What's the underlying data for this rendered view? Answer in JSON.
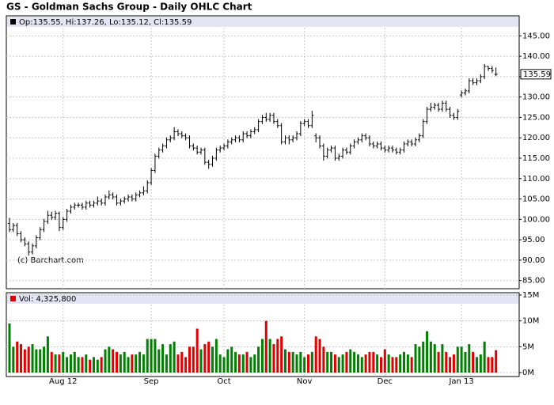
{
  "chart_data": [
    {
      "type": "ohlc",
      "title": "GS - Goldman Sachs Group - Daily OHLC Chart",
      "legend_text": "Op:135.55, Hi:137.26, Lo:135.12, Cl:135.59",
      "price_tag": "135.59",
      "watermark": "(c) Barchart.com",
      "color": "#000000",
      "grid": true,
      "categories": [
        null,
        null,
        null,
        null,
        null,
        null,
        null,
        null,
        null,
        null,
        null,
        null,
        null,
        null,
        "Aug 12",
        null,
        null,
        null,
        null,
        null,
        null,
        null,
        null,
        null,
        null,
        null,
        null,
        null,
        null,
        null,
        null,
        null,
        null,
        null,
        null,
        null,
        null,
        "Sep",
        null,
        null,
        null,
        null,
        null,
        null,
        null,
        null,
        null,
        null,
        null,
        null,
        null,
        null,
        null,
        null,
        null,
        null,
        "Oct",
        null,
        null,
        null,
        null,
        null,
        null,
        null,
        null,
        null,
        null,
        null,
        null,
        null,
        null,
        null,
        null,
        null,
        null,
        null,
        null,
        "Nov",
        null,
        null,
        null,
        null,
        null,
        null,
        null,
        null,
        null,
        null,
        null,
        null,
        null,
        null,
        null,
        null,
        null,
        null,
        null,
        null,
        "Dec",
        null,
        null,
        null,
        null,
        null,
        null,
        null,
        null,
        null,
        null,
        null,
        null,
        null,
        null,
        null,
        null,
        null,
        null,
        null,
        "Jan 13",
        null,
        null,
        null,
        null,
        null,
        null,
        null,
        null,
        null
      ],
      "open": [
        99,
        97.5,
        98.5,
        96.5,
        95,
        94,
        92,
        93.5,
        95.5,
        97.5,
        99.5,
        101,
        100.5,
        101.5,
        98,
        100,
        102,
        103,
        103.5,
        103.5,
        103,
        104,
        103.5,
        104,
        104.5,
        104,
        105.5,
        106,
        105.5,
        104,
        104.5,
        105,
        105.5,
        105,
        106,
        106.5,
        107,
        109,
        112,
        115.5,
        117,
        118,
        119.5,
        120,
        121.5,
        121,
        120.5,
        120,
        118,
        117.5,
        116.5,
        117,
        114,
        113.5,
        115,
        117,
        117.5,
        118,
        119,
        119.5,
        120,
        119.5,
        121,
        120.5,
        121.5,
        122,
        124,
        125,
        124.5,
        125.5,
        124,
        123,
        119,
        120,
        119.5,
        120,
        121,
        123.5,
        124,
        123,
        120.5,
        120,
        118,
        115.5,
        117,
        117.5,
        115,
        115.5,
        117,
        116.5,
        118,
        119,
        119.5,
        120.5,
        120,
        118.5,
        118,
        118.5,
        117.5,
        117,
        117.5,
        117,
        116.5,
        117,
        118.5,
        119,
        118.5,
        119.5,
        120.5,
        124,
        127,
        127.5,
        128,
        127,
        128.5,
        127,
        125.5,
        125,
        130.5,
        131,
        131.5,
        134,
        133.5,
        134,
        135,
        137.5,
        137,
        135.55
      ],
      "high": [
        100.4,
        99.1,
        99.1,
        97.1,
        95.6,
        94.6,
        94.1,
        96.1,
        98.1,
        100.1,
        102.1,
        101.9,
        102.1,
        101.9,
        100.6,
        102.6,
        103.6,
        104.1,
        104.1,
        104.1,
        104.6,
        104.6,
        104.6,
        105.6,
        105.1,
        106.1,
        107.1,
        106.6,
        106.1,
        105.1,
        105.6,
        106.1,
        106.1,
        106.6,
        107.1,
        108.1,
        109.6,
        112.6,
        116.1,
        117.6,
        118.6,
        120.1,
        120.6,
        122.6,
        122.1,
        121.6,
        121.1,
        120.6,
        118.6,
        118.1,
        117.6,
        117.6,
        114.6,
        115.6,
        117.6,
        118.1,
        118.6,
        119.6,
        120.1,
        120.6,
        120.6,
        121.6,
        121.6,
        122.1,
        122.6,
        124.6,
        125.6,
        126.1,
        126.1,
        126.1,
        124.6,
        123.6,
        120.6,
        120.6,
        120.6,
        121.6,
        124.1,
        124.6,
        124.6,
        126.6,
        121.1,
        120.6,
        118.6,
        117.6,
        118.1,
        118.1,
        116.1,
        117.6,
        117.6,
        118.6,
        119.6,
        120.1,
        121.1,
        121.1,
        120.6,
        119.1,
        119.1,
        119.1,
        118.1,
        118.1,
        118.1,
        117.6,
        117.6,
        119.1,
        119.6,
        119.6,
        120.1,
        121.1,
        124.6,
        127.6,
        128.6,
        128.6,
        128.6,
        129.1,
        129.1,
        127.6,
        126.1,
        127.1,
        131.6,
        132.1,
        134.6,
        134.6,
        134.6,
        135.6,
        138.1,
        137.6,
        137.6,
        137.26
      ],
      "low": [
        96.9,
        96.9,
        95.9,
        94.4,
        93.4,
        91.1,
        91.4,
        92.9,
        94.9,
        96.9,
        98.9,
        99.9,
        99.9,
        97.1,
        97.4,
        99.4,
        101.4,
        102.4,
        102.9,
        102.4,
        102.4,
        102.9,
        102.9,
        103.4,
        103.4,
        103.4,
        104.9,
        104.9,
        103.4,
        103.4,
        103.9,
        104.4,
        104.4,
        104.4,
        105.4,
        105.9,
        106.4,
        108.4,
        111.4,
        114.9,
        116.4,
        117.4,
        118.9,
        119.4,
        120.4,
        119.9,
        119.4,
        117.4,
        116.9,
        115.9,
        115.9,
        113.4,
        112.4,
        112.9,
        114.4,
        116.4,
        116.9,
        117.4,
        118.4,
        118.9,
        118.9,
        118.9,
        119.9,
        119.9,
        120.9,
        121.4,
        123.4,
        123.9,
        123.9,
        123.4,
        122.4,
        118.4,
        118.4,
        118.4,
        118.9,
        119.4,
        120.4,
        122.9,
        122.4,
        122.4,
        118.9,
        117.4,
        114.4,
        114.9,
        116.4,
        114.4,
        114.4,
        114.9,
        115.9,
        115.9,
        117.4,
        118.4,
        118.9,
        119.4,
        117.9,
        117.4,
        117.4,
        116.9,
        116.4,
        116.4,
        116.4,
        115.9,
        115.9,
        116.4,
        117.9,
        117.9,
        117.9,
        118.9,
        119.9,
        123.4,
        126.4,
        126.9,
        126.4,
        126.4,
        126.4,
        124.9,
        124.4,
        124.4,
        129.9,
        130.4,
        130.9,
        132.9,
        132.9,
        133.4,
        134.4,
        136.4,
        135.9,
        135.12
      ],
      "close": [
        97.5,
        98.5,
        96.5,
        95,
        94,
        92,
        93.5,
        95.5,
        97.5,
        99.5,
        101,
        100.5,
        101.5,
        98,
        100,
        102,
        103,
        103.5,
        103.5,
        103,
        104,
        103.5,
        104,
        104.5,
        104,
        105.5,
        106,
        105.5,
        104,
        104.5,
        105,
        105.5,
        105,
        106,
        106.5,
        107,
        109,
        112,
        115.5,
        117,
        118,
        119.5,
        120,
        121.5,
        121,
        120.5,
        120,
        118,
        117.5,
        116.5,
        117,
        114,
        113.5,
        115,
        117,
        117.5,
        118,
        119,
        119.5,
        120,
        119.5,
        121,
        120.5,
        121.5,
        122,
        124,
        125,
        124.5,
        125.5,
        124,
        123,
        119,
        120,
        119.5,
        120,
        121,
        123.5,
        124,
        123,
        125.5,
        120,
        118,
        115.5,
        117,
        117.5,
        115,
        115.5,
        117,
        116.5,
        118,
        119,
        119.5,
        120.5,
        120,
        118.5,
        118,
        118.5,
        117.5,
        117,
        117.5,
        117,
        116.5,
        117,
        118.5,
        119,
        118.5,
        119.5,
        120.5,
        124,
        127,
        127.5,
        128,
        127,
        128.5,
        127,
        125.5,
        125,
        126.5,
        131,
        131.5,
        134,
        133.5,
        134,
        135,
        137.5,
        137,
        136.5,
        135.59
      ],
      "ylim": [
        83,
        147
      ],
      "yticks": [
        {
          "value": 85,
          "label": "85.00"
        },
        {
          "value": 90,
          "label": "90.00"
        },
        {
          "value": 95,
          "label": "95.00"
        },
        {
          "value": 100,
          "label": "100.00"
        },
        {
          "value": 105,
          "label": "105.00"
        },
        {
          "value": 110,
          "label": "110.00"
        },
        {
          "value": 115,
          "label": "115.00"
        },
        {
          "value": 120,
          "label": "120.00"
        },
        {
          "value": 125,
          "label": "125.00"
        },
        {
          "value": 130,
          "label": "130.00"
        },
        {
          "value": 135,
          "label": "135.00"
        },
        {
          "value": 140,
          "label": "140.00"
        },
        {
          "value": 145,
          "label": "145.00"
        }
      ]
    },
    {
      "type": "bar",
      "legend_text": "Vol: 4,325,800",
      "legend_color": "#e00000",
      "up_color": "#008000",
      "down_color": "#e00000",
      "grid": true,
      "values": [
        9.5,
        5,
        6,
        5.5,
        4.5,
        5,
        5.5,
        4.5,
        4.5,
        5,
        7,
        4,
        3.5,
        3.5,
        4,
        3,
        3.5,
        4,
        3,
        3,
        3.5,
        2.5,
        3,
        2.5,
        3,
        4.5,
        5,
        4.5,
        4,
        3.5,
        4,
        3,
        3.5,
        3.5,
        4,
        3.5,
        6.5,
        6.5,
        6.5,
        4.5,
        5.5,
        3.5,
        5.5,
        6,
        3.5,
        4,
        3,
        5,
        5,
        8.5,
        4.5,
        5.5,
        6,
        5,
        6.5,
        3.5,
        3,
        4.5,
        5,
        4,
        3.5,
        3.5,
        4,
        3,
        3.5,
        5,
        6.5,
        10,
        6.5,
        5.5,
        6.5,
        7,
        4.5,
        4,
        4,
        3.5,
        4,
        3,
        3.5,
        4,
        7,
        6.5,
        5,
        4,
        4,
        3.5,
        3,
        3.5,
        4,
        4.5,
        4,
        3.5,
        3,
        3.5,
        4,
        4,
        3.5,
        3,
        4.5,
        3.5,
        3,
        3,
        3.5,
        4,
        3.5,
        3,
        5.5,
        5,
        6,
        8,
        6,
        5.5,
        4,
        5.5,
        4,
        3,
        3.5,
        5,
        5,
        4,
        5.5,
        4,
        3,
        3.5,
        6,
        3,
        3,
        4.3258
      ],
      "ylim": [
        0,
        15
      ],
      "yticks": [
        {
          "value": 0,
          "label": "0M"
        },
        {
          "value": 5,
          "label": "5M"
        },
        {
          "value": 10,
          "label": "10M"
        },
        {
          "value": 15,
          "label": "15M"
        }
      ]
    }
  ]
}
